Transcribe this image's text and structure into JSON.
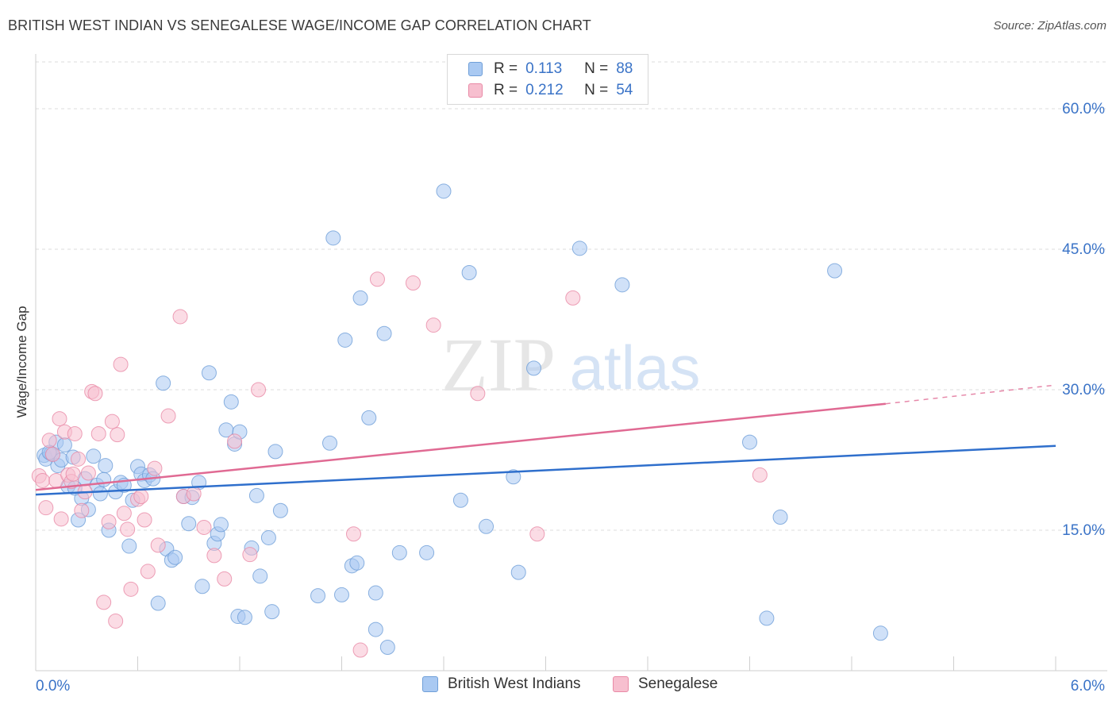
{
  "title": "BRITISH WEST INDIAN VS SENEGALESE WAGE/INCOME GAP CORRELATION CHART",
  "source": "Source: ZipAtlas.com",
  "watermark": {
    "zip": "ZIP",
    "atlas": "atlas"
  },
  "legend": {
    "rows": [
      {
        "r_label": "R =",
        "r_value": "0.113",
        "n_label": "N =",
        "n_value": "88"
      },
      {
        "r_label": "R =",
        "r_value": "0.212",
        "n_label": "N =",
        "n_value": "54"
      }
    ]
  },
  "bottom_legend": [
    "British West Indians",
    "Senegalese"
  ],
  "colors": {
    "blue_fill": "#a9c9f2",
    "blue_stroke": "#6f9fd8",
    "blue_line": "#2f6fcc",
    "pink_fill": "#f7bfcf",
    "pink_stroke": "#e98aa6",
    "pink_line": "#e06a93",
    "tick_text": "#3a73c7",
    "grid": "#dcdcdc"
  },
  "chart_data": {
    "type": "scatter",
    "title": "BRITISH WEST INDIAN VS SENEGALESE WAGE/INCOME GAP CORRELATION CHART",
    "xlabel": "",
    "ylabel": "Wage/Income Gap",
    "xlim": [
      0,
      6
    ],
    "ylim": [
      0,
      65
    ],
    "x_tick_labels": [
      "0.0%",
      "6.0%"
    ],
    "y_ticks": [
      15,
      30,
      45,
      60
    ],
    "y_tick_labels": [
      "15.0%",
      "30.0%",
      "45.0%",
      "60.0%"
    ],
    "grid": true,
    "legend_position": "top-center",
    "series": [
      {
        "name": "British West Indians",
        "r": 0.113,
        "n": 88,
        "trend": {
          "x": [
            0,
            6.0
          ],
          "y": [
            18.8,
            24.0
          ]
        },
        "points": [
          [
            0.05,
            23.0
          ],
          [
            0.06,
            22.6
          ],
          [
            0.09,
            23.2
          ],
          [
            0.1,
            23.1
          ],
          [
            0.12,
            24.4
          ],
          [
            0.13,
            21.9
          ],
          [
            0.15,
            22.5
          ],
          [
            0.17,
            24.1
          ],
          [
            0.19,
            19.7
          ],
          [
            0.22,
            22.8
          ],
          [
            0.25,
            16.1
          ],
          [
            0.27,
            18.4
          ],
          [
            0.29,
            20.5
          ],
          [
            0.31,
            17.2
          ],
          [
            0.34,
            22.9
          ],
          [
            0.36,
            19.8
          ],
          [
            0.38,
            18.9
          ],
          [
            0.4,
            20.4
          ],
          [
            0.41,
            21.9
          ],
          [
            0.43,
            15.0
          ],
          [
            0.47,
            19.1
          ],
          [
            0.5,
            20.1
          ],
          [
            0.52,
            19.8
          ],
          [
            0.55,
            13.3
          ],
          [
            0.57,
            18.2
          ],
          [
            0.6,
            21.8
          ],
          [
            0.62,
            21.0
          ],
          [
            0.64,
            20.3
          ],
          [
            0.67,
            20.9
          ],
          [
            0.69,
            20.5
          ],
          [
            0.72,
            7.2
          ],
          [
            0.75,
            30.7
          ],
          [
            0.77,
            13.0
          ],
          [
            0.8,
            11.8
          ],
          [
            0.82,
            12.1
          ],
          [
            0.87,
            18.6
          ],
          [
            0.9,
            15.7
          ],
          [
            0.92,
            18.5
          ],
          [
            0.96,
            20.1
          ],
          [
            0.98,
            9.0
          ],
          [
            1.02,
            31.8
          ],
          [
            1.05,
            13.6
          ],
          [
            1.07,
            14.6
          ],
          [
            1.09,
            15.6
          ],
          [
            1.12,
            25.7
          ],
          [
            1.15,
            28.7
          ],
          [
            1.17,
            24.2
          ],
          [
            1.19,
            5.8
          ],
          [
            1.2,
            25.5
          ],
          [
            1.23,
            5.7
          ],
          [
            1.27,
            13.1
          ],
          [
            1.3,
            18.7
          ],
          [
            1.32,
            10.1
          ],
          [
            1.37,
            14.2
          ],
          [
            1.39,
            6.3
          ],
          [
            1.41,
            23.4
          ],
          [
            1.44,
            17.1
          ],
          [
            1.66,
            8.0
          ],
          [
            1.73,
            24.3
          ],
          [
            1.75,
            46.2
          ],
          [
            1.8,
            8.1
          ],
          [
            1.82,
            35.3
          ],
          [
            1.86,
            11.2
          ],
          [
            1.89,
            11.5
          ],
          [
            1.91,
            39.8
          ],
          [
            1.96,
            27.0
          ],
          [
            2.0,
            8.3
          ],
          [
            2.0,
            4.4
          ],
          [
            2.05,
            36.0
          ],
          [
            2.07,
            2.5
          ],
          [
            2.14,
            12.6
          ],
          [
            2.3,
            12.6
          ],
          [
            2.4,
            51.2
          ],
          [
            2.5,
            18.2
          ],
          [
            2.55,
            42.5
          ],
          [
            2.65,
            15.4
          ],
          [
            2.81,
            20.7
          ],
          [
            2.84,
            10.5
          ],
          [
            2.93,
            32.3
          ],
          [
            3.2,
            45.1
          ],
          [
            3.45,
            41.2
          ],
          [
            4.2,
            24.4
          ],
          [
            4.3,
            5.6
          ],
          [
            4.38,
            16.4
          ],
          [
            4.7,
            42.7
          ],
          [
            4.97,
            4.0
          ],
          [
            0.08,
            23.3
          ],
          [
            0.23,
            19.5
          ]
        ]
      },
      {
        "name": "Senegalese",
        "r": 0.212,
        "n": 54,
        "trend": {
          "x": [
            0,
            5.0
          ],
          "y": [
            19.3,
            28.5
          ]
        },
        "trend_dashed": {
          "x": [
            5.0,
            6.0
          ],
          "y": [
            28.5,
            30.5
          ]
        },
        "points": [
          [
            0.02,
            20.8
          ],
          [
            0.04,
            20.3
          ],
          [
            0.06,
            17.4
          ],
          [
            0.08,
            24.6
          ],
          [
            0.1,
            23.1
          ],
          [
            0.12,
            20.3
          ],
          [
            0.14,
            26.9
          ],
          [
            0.15,
            16.2
          ],
          [
            0.17,
            25.5
          ],
          [
            0.19,
            20.9
          ],
          [
            0.21,
            20.2
          ],
          [
            0.23,
            25.3
          ],
          [
            0.25,
            22.6
          ],
          [
            0.27,
            17.1
          ],
          [
            0.29,
            19.1
          ],
          [
            0.31,
            21.1
          ],
          [
            0.33,
            29.8
          ],
          [
            0.35,
            29.6
          ],
          [
            0.37,
            25.3
          ],
          [
            0.4,
            7.3
          ],
          [
            0.43,
            15.9
          ],
          [
            0.45,
            26.6
          ],
          [
            0.47,
            5.3
          ],
          [
            0.5,
            32.7
          ],
          [
            0.52,
            16.8
          ],
          [
            0.54,
            15.1
          ],
          [
            0.56,
            8.7
          ],
          [
            0.6,
            18.3
          ],
          [
            0.62,
            18.6
          ],
          [
            0.64,
            16.1
          ],
          [
            0.66,
            10.6
          ],
          [
            0.7,
            21.6
          ],
          [
            0.72,
            13.4
          ],
          [
            0.78,
            27.2
          ],
          [
            0.85,
            37.8
          ],
          [
            0.87,
            18.6
          ],
          [
            0.93,
            18.9
          ],
          [
            0.99,
            15.3
          ],
          [
            1.05,
            12.3
          ],
          [
            1.11,
            9.8
          ],
          [
            1.17,
            24.5
          ],
          [
            1.26,
            12.4
          ],
          [
            1.31,
            30.0
          ],
          [
            1.87,
            14.6
          ],
          [
            1.91,
            2.2
          ],
          [
            2.01,
            41.8
          ],
          [
            2.22,
            41.4
          ],
          [
            2.34,
            36.9
          ],
          [
            2.6,
            29.6
          ],
          [
            2.95,
            14.6
          ],
          [
            3.16,
            39.8
          ],
          [
            4.26,
            20.9
          ],
          [
            0.22,
            21.0
          ],
          [
            0.48,
            25.2
          ]
        ]
      }
    ]
  }
}
